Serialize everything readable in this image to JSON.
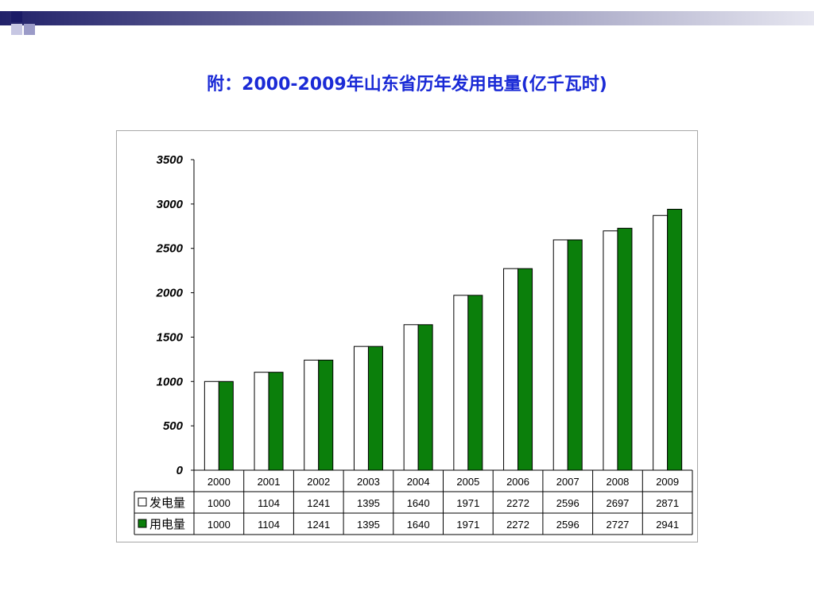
{
  "title": "附：2000-2009年山东省历年发用电量(亿千瓦时)",
  "chart_data": {
    "type": "bar",
    "categories": [
      "2000",
      "2001",
      "2002",
      "2003",
      "2004",
      "2005",
      "2006",
      "2007",
      "2008",
      "2009"
    ],
    "series": [
      {
        "name": "发电量",
        "color": "#ffffff",
        "values": [
          1000,
          1104,
          1241,
          1395,
          1640,
          1971,
          2272,
          2596,
          2697,
          2871
        ]
      },
      {
        "name": "用电量",
        "color": "#0b7f0b",
        "values": [
          1000,
          1104,
          1241,
          1395,
          1640,
          1971,
          2272,
          2596,
          2727,
          2941
        ]
      }
    ],
    "yticks": [
      0,
      500,
      1000,
      1500,
      2000,
      2500,
      3000,
      3500
    ],
    "ylim": [
      0,
      3500
    ],
    "grid": false,
    "legend": "table-below"
  }
}
